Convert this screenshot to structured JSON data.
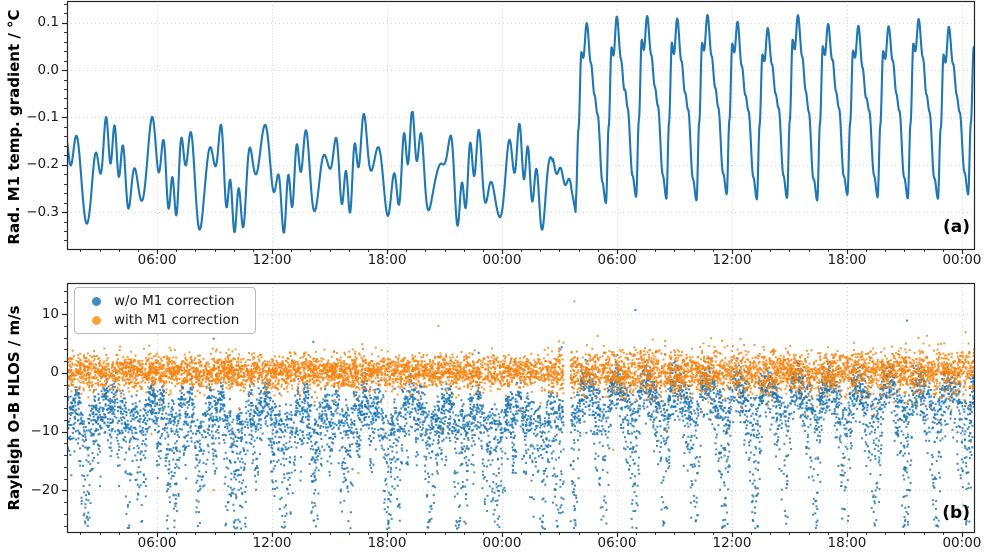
{
  "figure": {
    "background": "#ffffff",
    "axis_color": "#262626",
    "grid_color": "#d4d4d4"
  },
  "chart_data": [
    {
      "type": "line",
      "panel_label": "(a)",
      "ylabel": "Rad. M1 temp. gradient / °C",
      "xlabel": "",
      "line_color": "#1f77b4",
      "grid": true,
      "x_axis": {
        "unit": "time of day over ~2 days",
        "hours_range": [
          0,
          47.33
        ],
        "tick_hours": [
          4.7,
          10.7,
          16.7,
          22.7,
          28.7,
          34.7,
          40.7,
          46.7
        ],
        "tick_labels": [
          "06:00",
          "12:00",
          "18:00",
          "00:00",
          "06:00",
          "12:00",
          "18:00",
          "00:00"
        ],
        "minor_every_hours": 1
      },
      "y_axis": {
        "lim": [
          -0.378,
          0.146
        ],
        "ticks": [
          {
            "v": 0.1,
            "label": "0.1"
          },
          {
            "v": 0.0,
            "label": "0.0"
          },
          {
            "v": -0.1,
            "label": "−0.1"
          },
          {
            "v": -0.2,
            "label": "−0.2"
          },
          {
            "v": -0.3,
            "label": "−0.3"
          }
        ],
        "minor_step": 0.02
      },
      "series": {
        "name": "Rad. M1 temperature gradient",
        "regime1": {
          "t_range": [
            0,
            25.35
          ],
          "mean": -0.215,
          "min": -0.35,
          "max": -0.09,
          "osc_amp_main": 0.062,
          "osc_period_main_h": 1.92,
          "osc_amp_fast": 0.048,
          "osc_period_fast_h": 0.6,
          "noise_amp": 0.02
        },
        "transition": {
          "t_range": [
            25.35,
            26.55
          ],
          "level_start": -0.197,
          "level_end": -0.302
        },
        "regime2": {
          "t_range": [
            26.55,
            47.33
          ],
          "peak": 0.095,
          "trough": -0.272,
          "period_h": 1.575,
          "shape_points": [
            [
              0,
              0
            ],
            [
              0.09,
              0.42
            ],
            [
              0.185,
              0.86
            ],
            [
              0.25,
              0.815
            ],
            [
              0.36,
              1.0
            ],
            [
              0.5,
              0.78
            ],
            [
              0.62,
              0.6
            ],
            [
              0.72,
              0.5
            ],
            [
              0.88,
              0.12
            ],
            [
              1,
              0
            ]
          ]
        }
      }
    },
    {
      "type": "scatter",
      "panel_label": "(b)",
      "ylabel": "Rayleigh O-B HLOS / m/s",
      "xlabel": "",
      "grid": true,
      "x_axis": {
        "unit": "time of day over ~2 days",
        "hours_range": [
          0,
          47.33
        ],
        "tick_hours": [
          4.7,
          10.7,
          16.7,
          22.7,
          28.7,
          34.7,
          40.7,
          46.7
        ],
        "tick_labels": [
          "06:00",
          "12:00",
          "18:00",
          "00:00",
          "06:00",
          "12:00",
          "18:00",
          "00:00"
        ],
        "minor_every_hours": 1
      },
      "y_axis": {
        "lim": [
          -27.1,
          15.3
        ],
        "ticks": [
          {
            "v": 10,
            "label": "10"
          },
          {
            "v": 0,
            "label": "0"
          },
          {
            "v": -10,
            "label": "−10"
          },
          {
            "v": -20,
            "label": "−20"
          }
        ],
        "minor_step": 2
      },
      "legend": {
        "position": "upper left",
        "entries": [
          {
            "label": "w/o M1 correction",
            "color": "rgba(31,119,180,0.85)"
          },
          {
            "label": "with M1 correction",
            "color": "rgba(250,148,28,0.85)"
          }
        ]
      },
      "data_gap_hours": [
        25.92,
        26.28
      ],
      "series": [
        {
          "name": "w/o M1 correction",
          "color": "#1f77b4",
          "n_points": 7000,
          "band_center_range": [
            -10,
            -1
          ],
          "streak_min": -26,
          "coupled_to": "panel (a) gradient oscillation",
          "rare_high_outliers_max": 13
        },
        {
          "name": "with M1 correction",
          "color": "#f5821c",
          "n_points": 7000,
          "mean": 0.15,
          "std_first_day": 1.45,
          "std_second_day": 1.85,
          "outlier_max": 12,
          "outlier_min": -20
        }
      ]
    }
  ]
}
